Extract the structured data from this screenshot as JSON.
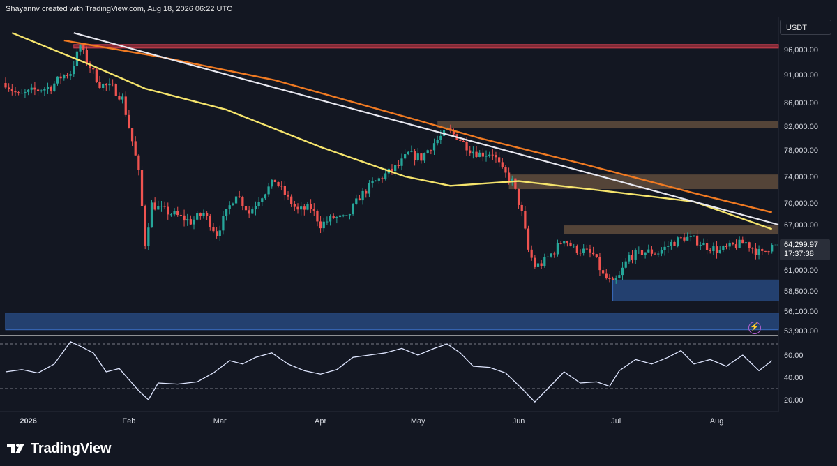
{
  "header": {
    "credit": "Shayannv created with TradingView.com, Aug 18, 2026 06:22 UTC"
  },
  "currency_button": "USDT",
  "price_tag": {
    "price": "64,299.97",
    "countdown": "17:37:38"
  },
  "brand": {
    "name": "TradingView"
  },
  "icons": {
    "flash": "lightning-icon",
    "logo": "tradingview-logo-icon"
  },
  "colors": {
    "background": "#131722",
    "up": "#26a69a",
    "down": "#ef5350",
    "ma_yellow": "#f5e46c",
    "ma_orange": "#f07a22",
    "trendline": "#e8e8f0",
    "resistance_zone": "#8b6a4a",
    "supply_zone": "#a8323e",
    "demand_zone": "#2a4f8a",
    "rsi_line": "#dfe6ff"
  },
  "chart_data": [
    {
      "type": "candlestick",
      "symbol_quote": "USDT",
      "y_ticks": [
        "96,000.00",
        "91,000.00",
        "86,000.00",
        "82,000.00",
        "78,000.00",
        "74,000.00",
        "70,000.00",
        "67,000.00",
        "64,299.97",
        "61,000.00",
        "58,500.00",
        "56,100.00",
        "53,900.00"
      ],
      "x_ticks": [
        "2026",
        "Feb",
        "Mar",
        "Apr",
        "May",
        "Jun",
        "Jul",
        "Aug"
      ],
      "x_range": [
        "2025-12-25",
        "2026-08-20"
      ],
      "last_price": 64299.97,
      "price_path": [
        [
          "2025-12-25",
          89500
        ],
        [
          "2025-12-29",
          87200
        ],
        [
          "2026-01-03",
          88200
        ],
        [
          "2026-01-08",
          88800
        ],
        [
          "2026-01-11",
          90600
        ],
        [
          "2026-01-14",
          91400
        ],
        [
          "2026-01-17",
          96800
        ],
        [
          "2026-01-19",
          93600
        ],
        [
          "2026-01-23",
          89300
        ],
        [
          "2026-01-27",
          88600
        ],
        [
          "2026-01-30",
          86700
        ],
        [
          "2026-02-02",
          79500
        ],
        [
          "2026-02-04",
          74500
        ],
        [
          "2026-02-06",
          64500
        ],
        [
          "2026-02-08",
          69800
        ],
        [
          "2026-02-12",
          68900
        ],
        [
          "2026-02-16",
          68200
        ],
        [
          "2026-02-20",
          67400
        ],
        [
          "2026-02-24",
          68600
        ],
        [
          "2026-02-28",
          65800
        ],
        [
          "2026-03-03",
          68600
        ],
        [
          "2026-03-06",
          71500
        ],
        [
          "2026-03-10",
          68600
        ],
        [
          "2026-03-14",
          71200
        ],
        [
          "2026-03-18",
          73400
        ],
        [
          "2026-03-22",
          70600
        ],
        [
          "2026-03-25",
          68900
        ],
        [
          "2026-03-29",
          69400
        ],
        [
          "2026-04-01",
          67000
        ],
        [
          "2026-04-05",
          68000
        ],
        [
          "2026-04-09",
          67800
        ],
        [
          "2026-04-13",
          70900
        ],
        [
          "2026-04-17",
          72900
        ],
        [
          "2026-04-21",
          74300
        ],
        [
          "2026-04-25",
          75600
        ],
        [
          "2026-04-28",
          77400
        ],
        [
          "2026-05-02",
          76800
        ],
        [
          "2026-05-06",
          79200
        ],
        [
          "2026-05-10",
          81200
        ],
        [
          "2026-05-13",
          80300
        ],
        [
          "2026-05-17",
          78100
        ],
        [
          "2026-05-20",
          77400
        ],
        [
          "2026-05-24",
          77600
        ],
        [
          "2026-05-27",
          74800
        ],
        [
          "2026-05-30",
          73300
        ],
        [
          "2026-06-02",
          68500
        ],
        [
          "2026-06-04",
          63600
        ],
        [
          "2026-06-06",
          61500
        ],
        [
          "2026-06-08",
          61800
        ],
        [
          "2026-06-12",
          63500
        ],
        [
          "2026-06-15",
          65200
        ],
        [
          "2026-06-18",
          63800
        ],
        [
          "2026-06-21",
          63500
        ],
        [
          "2026-06-24",
          63000
        ],
        [
          "2026-06-27",
          60300
        ],
        [
          "2026-06-30",
          59300
        ],
        [
          "2026-07-02",
          60200
        ],
        [
          "2026-07-05",
          62800
        ],
        [
          "2026-07-10",
          63400
        ],
        [
          "2026-07-14",
          63300
        ],
        [
          "2026-07-18",
          64500
        ],
        [
          "2026-07-22",
          65300
        ],
        [
          "2026-07-25",
          65000
        ],
        [
          "2026-07-29",
          64100
        ],
        [
          "2026-08-02",
          63500
        ],
        [
          "2026-08-06",
          64200
        ],
        [
          "2026-08-10",
          64600
        ],
        [
          "2026-08-13",
          63500
        ],
        [
          "2026-08-15",
          63100
        ],
        [
          "2026-08-18",
          64299.97
        ]
      ],
      "moving_averages": [
        {
          "color": "#f07a22",
          "points": [
            [
              "2026-01-12",
              97800
            ],
            [
              "2026-02-11",
              94500
            ],
            [
              "2026-03-18",
              90000
            ],
            [
              "2026-05-01",
              83000
            ],
            [
              "2026-05-20",
              80000
            ],
            [
              "2026-06-20",
              76000
            ],
            [
              "2026-07-25",
              71500
            ],
            [
              "2026-08-18",
              68700
            ]
          ]
        },
        {
          "color": "#f5e46c",
          "points": [
            [
              "2025-12-27",
              99300
            ],
            [
              "2026-01-20",
              93000
            ],
            [
              "2026-02-06",
              88500
            ],
            [
              "2026-03-03",
              84800
            ],
            [
              "2026-04-01",
              78500
            ],
            [
              "2026-04-27",
              74000
            ],
            [
              "2026-05-11",
              72600
            ],
            [
              "2026-06-01",
              73300
            ],
            [
              "2026-06-28",
              71800
            ],
            [
              "2026-07-25",
              70200
            ],
            [
              "2026-08-18",
              66400
            ]
          ]
        }
      ],
      "trendline": [
        [
          "2026-01-15",
          99300
        ],
        [
          "2026-08-20",
          67000
        ]
      ],
      "zones": [
        {
          "from": "2026-01-15",
          "to": "2026-08-20",
          "low": 96300,
          "high": 97000,
          "kind": "supply"
        },
        {
          "from": "2026-05-07",
          "to": "2026-08-20",
          "low": 81700,
          "high": 82900,
          "kind": "resistance"
        },
        {
          "from": "2026-05-29",
          "to": "2026-08-20",
          "low": 72100,
          "high": 74300,
          "kind": "resistance"
        },
        {
          "from": "2026-06-15",
          "to": "2026-08-20",
          "low": 65700,
          "high": 66900,
          "kind": "resistance"
        },
        {
          "from": "2026-06-30",
          "to": "2026-08-20",
          "low": 57300,
          "high": 59800,
          "kind": "demand"
        },
        {
          "from": "2025-12-25",
          "to": "2026-08-20",
          "low": 54000,
          "high": 55900,
          "kind": "demand"
        }
      ]
    },
    {
      "type": "line",
      "indicator": "RSI",
      "y_ticks": [
        "60.00",
        "40.00",
        "20.00"
      ],
      "levels": [
        70,
        30
      ],
      "values": [
        [
          "2025-12-25",
          45
        ],
        [
          "2025-12-30",
          47
        ],
        [
          "2026-01-04",
          44
        ],
        [
          "2026-01-09",
          52
        ],
        [
          "2026-01-14",
          72
        ],
        [
          "2026-01-17",
          68
        ],
        [
          "2026-01-21",
          62
        ],
        [
          "2026-01-25",
          45
        ],
        [
          "2026-01-29",
          48
        ],
        [
          "2026-02-04",
          28
        ],
        [
          "2026-02-07",
          20
        ],
        [
          "2026-02-10",
          35
        ],
        [
          "2026-02-16",
          34
        ],
        [
          "2026-02-22",
          36
        ],
        [
          "2026-02-27",
          44
        ],
        [
          "2026-03-04",
          55
        ],
        [
          "2026-03-08",
          52
        ],
        [
          "2026-03-12",
          58
        ],
        [
          "2026-03-17",
          62
        ],
        [
          "2026-03-22",
          52
        ],
        [
          "2026-03-27",
          46
        ],
        [
          "2026-04-01",
          43
        ],
        [
          "2026-04-06",
          47
        ],
        [
          "2026-04-11",
          58
        ],
        [
          "2026-04-16",
          60
        ],
        [
          "2026-04-21",
          62
        ],
        [
          "2026-04-26",
          66
        ],
        [
          "2026-05-01",
          60
        ],
        [
          "2026-05-06",
          66
        ],
        [
          "2026-05-10",
          70
        ],
        [
          "2026-05-14",
          62
        ],
        [
          "2026-05-18",
          50
        ],
        [
          "2026-05-23",
          49
        ],
        [
          "2026-05-28",
          44
        ],
        [
          "2026-06-02",
          30
        ],
        [
          "2026-06-06",
          18
        ],
        [
          "2026-06-10",
          30
        ],
        [
          "2026-06-15",
          45
        ],
        [
          "2026-06-20",
          35
        ],
        [
          "2026-06-25",
          36
        ],
        [
          "2026-06-29",
          32
        ],
        [
          "2026-07-02",
          46
        ],
        [
          "2026-07-07",
          56
        ],
        [
          "2026-07-12",
          52
        ],
        [
          "2026-07-17",
          58
        ],
        [
          "2026-07-21",
          64
        ],
        [
          "2026-07-25",
          52
        ],
        [
          "2026-07-30",
          56
        ],
        [
          "2026-08-04",
          50
        ],
        [
          "2026-08-09",
          60
        ],
        [
          "2026-08-14",
          46
        ],
        [
          "2026-08-18",
          55
        ]
      ]
    }
  ]
}
